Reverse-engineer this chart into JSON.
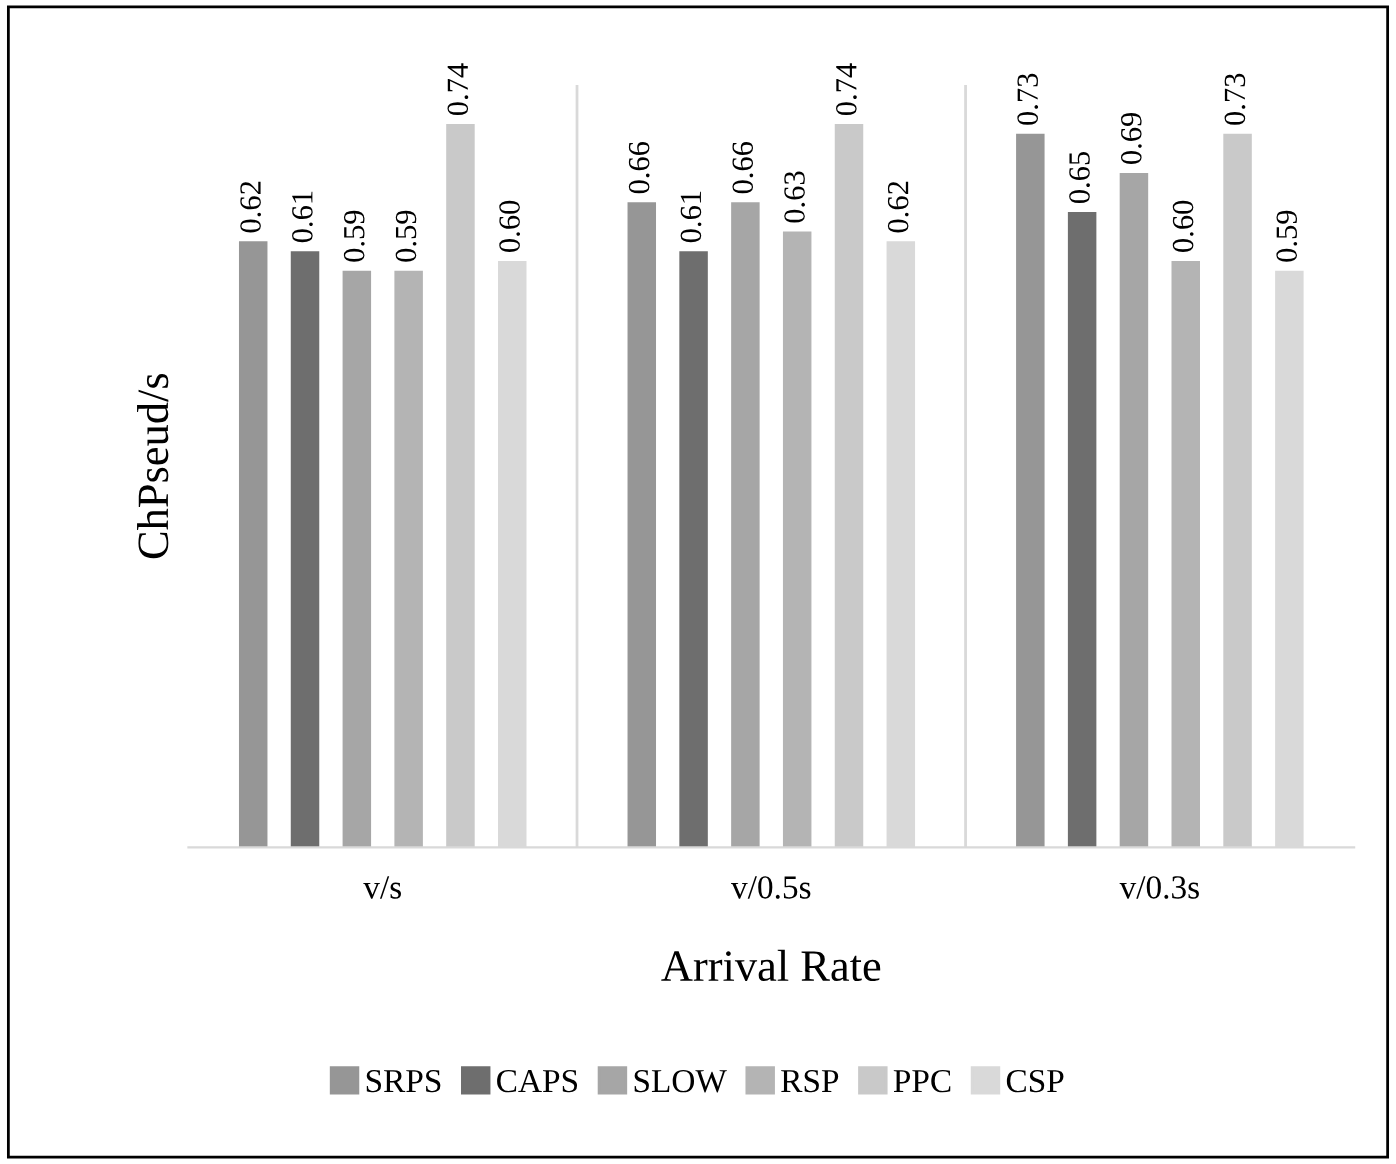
{
  "chart_data": {
    "type": "bar",
    "xlabel": "Arrival Rate",
    "ylabel": "ChPseud/s",
    "categories": [
      "v/s",
      "v/0.5s",
      "v/0.3s"
    ],
    "series": [
      {
        "name": "SRPS",
        "color": "#969696",
        "values": [
          0.62,
          0.66,
          0.73
        ],
        "value_labels": [
          "0.62",
          "0.66",
          "0.73"
        ]
      },
      {
        "name": "CAPS",
        "color": "#6e6e6e",
        "values": [
          0.61,
          0.61,
          0.65
        ],
        "value_labels": [
          "0.61",
          "0.61",
          "0.65"
        ]
      },
      {
        "name": "SLOW",
        "color": "#a6a6a6",
        "values": [
          0.59,
          0.66,
          0.69
        ],
        "value_labels": [
          "0.59",
          "0.66",
          "0.69"
        ]
      },
      {
        "name": "RSP",
        "color": "#b4b4b4",
        "values": [
          0.59,
          0.63,
          0.6
        ],
        "value_labels": [
          "0.59",
          "0.63",
          "0.60"
        ]
      },
      {
        "name": "PPC",
        "color": "#c9c9c9",
        "values": [
          0.74,
          0.74,
          0.73
        ],
        "value_labels": [
          "0.74",
          "0.74",
          "0.73"
        ]
      },
      {
        "name": "CSP",
        "color": "#d9d9d9",
        "values": [
          0.6,
          0.62,
          0.59
        ],
        "value_labels": [
          "0.60",
          "0.62",
          "0.59"
        ]
      }
    ],
    "ylim": [
      0,
      0.78
    ],
    "tick_labels": "x",
    "grid": "x",
    "legend": "bottom"
  }
}
